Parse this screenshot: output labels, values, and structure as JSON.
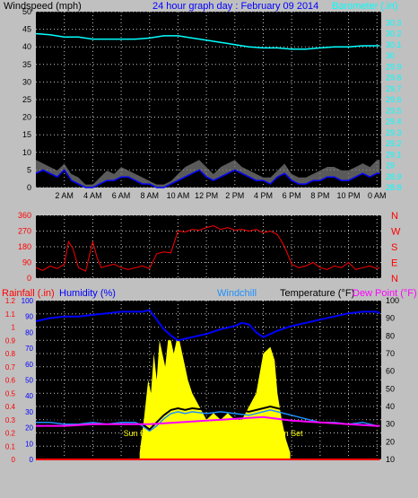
{
  "colors": {
    "background": "#c0c0c0",
    "plot": "#000000",
    "grid": "#c8c8c8",
    "wind_avg": "#0000ff",
    "wind_gust": "#000000",
    "wind_band": "#808080",
    "barometer": "#00ffff",
    "wind_dir": "#ff0000",
    "rainfall": "#ff0000",
    "humidity": "#0000ff",
    "windchill": "#1e90ff",
    "temperature": "#000000",
    "dew_point": "#ff00ff",
    "solar": "#ffff00",
    "sun_label": "#ffff00"
  },
  "chart_data": [
    {
      "type": "line",
      "title": "24 hour graph day : February 09 2014",
      "ylabel_left": "Windspeed (mph)",
      "ylabel_right": "Barometer (.in)",
      "x_tick_labels": [
        "2 AM",
        "4 AM",
        "6 AM",
        "8 AM",
        "10 AM",
        "12 PM",
        "2 PM",
        "4 PM",
        "6 PM",
        "8 PM",
        "10 PM",
        "0 AM"
      ],
      "x_hours": [
        2,
        4,
        6,
        8,
        10,
        12,
        14,
        16,
        18,
        20,
        22,
        24
      ],
      "xlim": [
        0,
        24.3
      ],
      "ylim_left": [
        0,
        50
      ],
      "yticks_left": [
        0,
        5,
        10,
        15,
        20,
        25,
        30,
        35,
        40,
        45,
        50
      ],
      "ylim_right": [
        28.8,
        30.4
      ],
      "yticks_right": [
        "28.8",
        "28.9",
        "29",
        "29.1",
        "29.2",
        "29.3",
        "29.4",
        "29.5",
        "29.6",
        "29.7",
        "29.8",
        "29.9",
        "30",
        "30.1",
        "30.2",
        "30.3"
      ],
      "grid": true,
      "series": [
        {
          "name": "Barometer (.in)",
          "x": [
            0,
            1,
            2,
            3,
            4,
            5,
            6,
            7,
            8,
            9,
            10,
            11,
            12,
            13,
            14,
            15,
            16,
            17,
            18,
            19,
            20,
            21,
            22,
            23,
            24.2
          ],
          "values": [
            30.2,
            30.19,
            30.17,
            30.17,
            30.15,
            30.15,
            30.15,
            30.15,
            30.16,
            30.18,
            30.18,
            30.16,
            30.14,
            30.12,
            30.1,
            30.08,
            30.07,
            30.07,
            30.06,
            30.06,
            30.07,
            30.08,
            30.08,
            30.09,
            30.09
          ]
        },
        {
          "name": "Wind speed",
          "x": [
            0,
            0.5,
            1,
            1.5,
            2,
            2.5,
            3,
            3.5,
            4,
            4.5,
            5,
            5.5,
            6,
            6.5,
            7,
            7.5,
            8,
            8.5,
            9,
            9.5,
            10,
            10.5,
            11,
            11.5,
            12,
            12.5,
            13,
            13.5,
            14,
            14.5,
            15,
            15.5,
            16,
            16.5,
            17,
            17.5,
            18,
            18.5,
            19,
            19.5,
            20,
            20.5,
            21,
            21.5,
            22,
            22.5,
            23,
            23.5,
            24,
            24.2
          ],
          "values": [
            4,
            5,
            4,
            3,
            5,
            2,
            1,
            0,
            0,
            1,
            2,
            2,
            3,
            3,
            2,
            1,
            1,
            0,
            0,
            1,
            2,
            3,
            4,
            5,
            3,
            2,
            3,
            4,
            5,
            4,
            3,
            2,
            2,
            1,
            3,
            4,
            2,
            1,
            1,
            2,
            2,
            3,
            3,
            2,
            2,
            3,
            4,
            3,
            4,
            4
          ]
        },
        {
          "name": "Wind gust",
          "x": [
            0,
            0.5,
            1,
            1.5,
            2,
            2.5,
            3,
            3.5,
            4,
            4.5,
            5,
            5.5,
            6,
            6.5,
            7,
            7.5,
            8,
            8.5,
            9,
            9.5,
            10,
            10.5,
            11,
            11.5,
            12,
            12.5,
            13,
            13.5,
            14,
            14.5,
            15,
            15.5,
            16,
            16.5,
            17,
            17.5,
            18,
            18.5,
            19,
            19.5,
            20,
            20.5,
            21,
            21.5,
            22,
            22.5,
            23,
            23.5,
            24,
            24.2
          ],
          "values": [
            8,
            7,
            6,
            5,
            7,
            4,
            3,
            1,
            1,
            3,
            5,
            4,
            6,
            5,
            4,
            3,
            2,
            1,
            1,
            2,
            4,
            6,
            7,
            8,
            6,
            4,
            6,
            7,
            8,
            6,
            5,
            4,
            3,
            3,
            5,
            7,
            4,
            3,
            3,
            4,
            5,
            6,
            6,
            5,
            5,
            6,
            7,
            6,
            8,
            8
          ]
        }
      ]
    },
    {
      "type": "scatter",
      "title": "",
      "ylabel_left": "",
      "ylabel_right": "",
      "xlim": [
        0,
        24.3
      ],
      "ylim": [
        0,
        360
      ],
      "yticks": [
        0,
        90,
        180,
        270,
        360
      ],
      "compass_labels": [
        "N",
        "W",
        "S",
        "E",
        "N"
      ],
      "grid": true,
      "series": [
        {
          "name": "Wind direction",
          "x": [
            0,
            0.5,
            1,
            1.5,
            2,
            2.3,
            2.6,
            3,
            3.5,
            4,
            4.3,
            4.6,
            5,
            5.5,
            6,
            6.5,
            7,
            7.5,
            8,
            8.5,
            9,
            9.5,
            10,
            10.5,
            11,
            11.5,
            12,
            12.5,
            13,
            13.5,
            14,
            14.5,
            15,
            15.5,
            16,
            16.5,
            17,
            17.5,
            18,
            18.5,
            19,
            19.5,
            20,
            20.5,
            21,
            21.5,
            22,
            22.5,
            23,
            23.5,
            24,
            24.2
          ],
          "values": [
            60,
            45,
            70,
            55,
            80,
            210,
            170,
            60,
            40,
            210,
            120,
            60,
            70,
            80,
            60,
            50,
            60,
            70,
            55,
            140,
            150,
            145,
            270,
            265,
            280,
            275,
            290,
            300,
            280,
            290,
            275,
            280,
            270,
            280,
            260,
            270,
            250,
            180,
            80,
            60,
            70,
            90,
            60,
            50,
            70,
            60,
            90,
            50,
            60,
            70,
            55,
            60
          ]
        }
      ]
    },
    {
      "type": "line",
      "title": "",
      "legend": [
        "Rainfall (.in)",
        "Humidity (%)",
        "Windchill",
        "Temperature (°F)",
        "Dew Point (°F)"
      ],
      "xlim": [
        0,
        24.3
      ],
      "ylim_rain": [
        0,
        1.2
      ],
      "yticks_rain": [
        "0",
        "0.1",
        "0.2",
        "0.3",
        "0.4",
        "0.5",
        "0.6",
        "0.7",
        "0.8",
        "0.9",
        "1",
        "1.1",
        "1.2"
      ],
      "ylim_humidity": [
        0,
        100
      ],
      "yticks_humidity": [
        0,
        10,
        20,
        30,
        40,
        50,
        60,
        70,
        80,
        90,
        100
      ],
      "ylim_temp": [
        10,
        100
      ],
      "yticks_temp": [
        10,
        20,
        30,
        40,
        50,
        60,
        70,
        80,
        90,
        100
      ],
      "annotations": [
        "Sun Rise",
        "Sun Set"
      ],
      "sunrise_hour": 7.3,
      "sunset_hour": 17.9,
      "grid": true,
      "series": [
        {
          "name": "Humidity (%)",
          "axis": "humidity",
          "x": [
            0,
            1,
            2,
            3,
            4,
            5,
            6,
            7,
            7.5,
            8,
            8.5,
            9,
            9.5,
            10,
            10.5,
            11,
            12,
            13,
            14,
            14.5,
            15,
            15.5,
            16,
            16.5,
            17,
            18,
            19,
            20,
            21,
            22,
            23,
            24,
            24.2
          ],
          "values": [
            87,
            89,
            90,
            90,
            91,
            92,
            93,
            93,
            93,
            94,
            88,
            82,
            78,
            75,
            76,
            77,
            79,
            82,
            84,
            86,
            85,
            80,
            77,
            79,
            81,
            84,
            86,
            88,
            90,
            92,
            93,
            93,
            92
          ]
        },
        {
          "name": "Temperature (°F)",
          "axis": "temp",
          "x": [
            0,
            1,
            2,
            3,
            4,
            5,
            6,
            7,
            7.5,
            8,
            8.5,
            9,
            9.5,
            10,
            10.5,
            11,
            12,
            13,
            14,
            15,
            16,
            16.5,
            17,
            18,
            19,
            20,
            21,
            22,
            23,
            24,
            24.2
          ],
          "values": [
            34,
            33,
            33,
            32,
            33,
            33,
            33,
            33,
            30,
            27,
            31,
            35,
            38,
            39,
            38,
            39,
            38,
            39,
            38,
            37,
            39,
            40,
            39,
            37,
            35,
            33,
            33,
            32,
            32,
            30,
            30
          ]
        },
        {
          "name": "Windchill",
          "axis": "temp",
          "x": [
            0,
            1,
            2,
            3,
            4,
            5,
            6,
            7,
            7.5,
            8,
            8.5,
            9,
            9.5,
            10,
            10.5,
            11,
            12,
            13,
            14,
            15,
            16,
            16.5,
            17,
            18,
            19,
            20,
            21,
            22,
            23,
            24,
            24.2
          ],
          "values": [
            31,
            31,
            30,
            30,
            31,
            30,
            31,
            31,
            29,
            26,
            29,
            33,
            36,
            37,
            36,
            37,
            36,
            37,
            36,
            35,
            37,
            38,
            37,
            35,
            33,
            31,
            31,
            30,
            31,
            29,
            29
          ]
        },
        {
          "name": "Dew Point (°F)",
          "axis": "temp",
          "x": [
            0,
            2,
            4,
            6,
            8,
            10,
            12,
            14,
            16,
            18,
            20,
            22,
            24,
            24.2
          ],
          "values": [
            29,
            29,
            30,
            30,
            30,
            31,
            32,
            33,
            34,
            32,
            31,
            30,
            29,
            29
          ]
        },
        {
          "name": "Solar",
          "axis": "rain",
          "x": [
            7.3,
            7.6,
            7.9,
            8.1,
            8.3,
            8.5,
            8.7,
            8.9,
            9.1,
            9.3,
            9.5,
            9.7,
            9.9,
            10.1,
            10.3,
            10.5,
            10.7,
            11,
            11.5,
            12,
            12.5,
            13,
            13.5,
            14,
            14.5,
            15,
            15.5,
            16,
            16.5,
            16.8,
            17,
            17.3,
            17.6,
            17.9
          ],
          "values": [
            0.05,
            0.3,
            0.6,
            0.5,
            0.8,
            0.6,
            0.9,
            0.8,
            0.7,
            0.9,
            0.9,
            0.8,
            0.9,
            0.9,
            0.8,
            0.7,
            0.6,
            0.5,
            0.4,
            0.3,
            0.35,
            0.3,
            0.35,
            0.3,
            0.3,
            0.4,
            0.5,
            0.8,
            0.85,
            0.75,
            0.5,
            0.3,
            0.15,
            0.05
          ]
        },
        {
          "name": "Rainfall (.in)",
          "axis": "rain",
          "x": [
            0,
            24.2
          ],
          "values": [
            0,
            0
          ]
        }
      ]
    }
  ]
}
